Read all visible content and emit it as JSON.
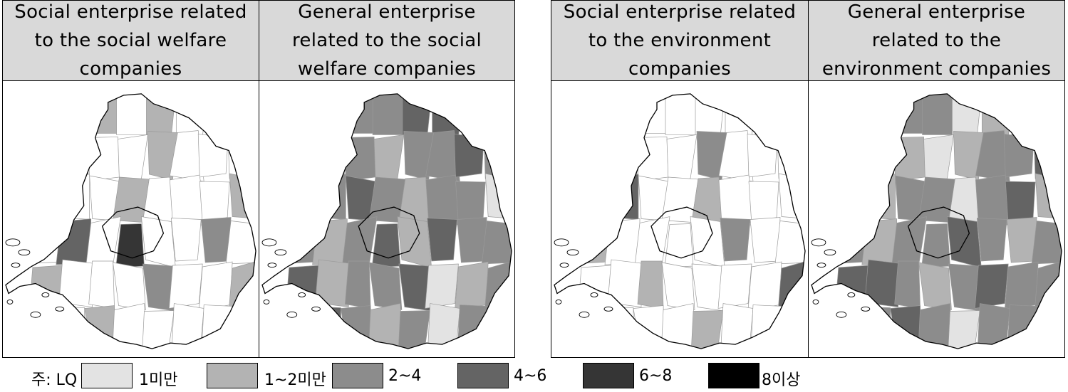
{
  "panels": [
    {
      "title": "Social enterprise related to the social welfare companies",
      "pattern": [
        0,
        0,
        1,
        0,
        1,
        0,
        0,
        0,
        0,
        2,
        0,
        0,
        1,
        0,
        0,
        0,
        2,
        0,
        0,
        1,
        0,
        0,
        0,
        1,
        0,
        3,
        0,
        4,
        0,
        0,
        2,
        0,
        1,
        0,
        0,
        0,
        2,
        0,
        0,
        1,
        0,
        0,
        1,
        0,
        0,
        0,
        0,
        0
      ]
    },
    {
      "title": "General enterprise related to the social welfare companies",
      "pattern": [
        2,
        3,
        2,
        2,
        3,
        3,
        2,
        1,
        2,
        2,
        2,
        1,
        2,
        2,
        3,
        2,
        1,
        2,
        3,
        2,
        1,
        2,
        2,
        0,
        2,
        1,
        2,
        3,
        1,
        3,
        2,
        2,
        3,
        1,
        2,
        2,
        3,
        0,
        1,
        2,
        2,
        3,
        2,
        1,
        2,
        0,
        2,
        2
      ]
    },
    {
      "title": "Social enterprise related to the environment companies",
      "pattern": [
        0,
        0,
        0,
        0,
        0,
        0,
        0,
        0,
        0,
        1,
        0,
        0,
        2,
        0,
        0,
        0,
        0,
        3,
        0,
        0,
        1,
        0,
        0,
        0,
        1,
        0,
        0,
        0,
        0,
        2,
        0,
        0,
        0,
        0,
        1,
        0,
        0,
        0,
        0,
        3,
        3,
        0,
        0,
        0,
        1,
        0,
        0,
        0
      ]
    },
    {
      "title": "General enterprise related to the environment companies",
      "pattern": [
        1,
        3,
        2,
        2,
        0,
        1,
        2,
        3,
        2,
        2,
        1,
        0,
        1,
        2,
        2,
        3,
        2,
        1,
        2,
        2,
        0,
        2,
        3,
        1,
        2,
        1,
        2,
        2,
        3,
        2,
        1,
        2,
        3,
        3,
        2,
        1,
        2,
        3,
        2,
        2,
        1,
        2,
        3,
        2,
        0,
        2,
        2,
        1
      ]
    }
  ],
  "legend": {
    "title": "주: LQ",
    "items": [
      {
        "label": "1미만",
        "color": "#e3e3e3"
      },
      {
        "label": "1~2미만",
        "color": "#b3b3b3"
      },
      {
        "label": "2~4",
        "color": "#8c8c8c"
      },
      {
        "label": "4~6",
        "color": "#646464"
      },
      {
        "label": "6~8",
        "color": "#353535"
      },
      {
        "label": "8이상",
        "color": "#000000"
      }
    ]
  }
}
